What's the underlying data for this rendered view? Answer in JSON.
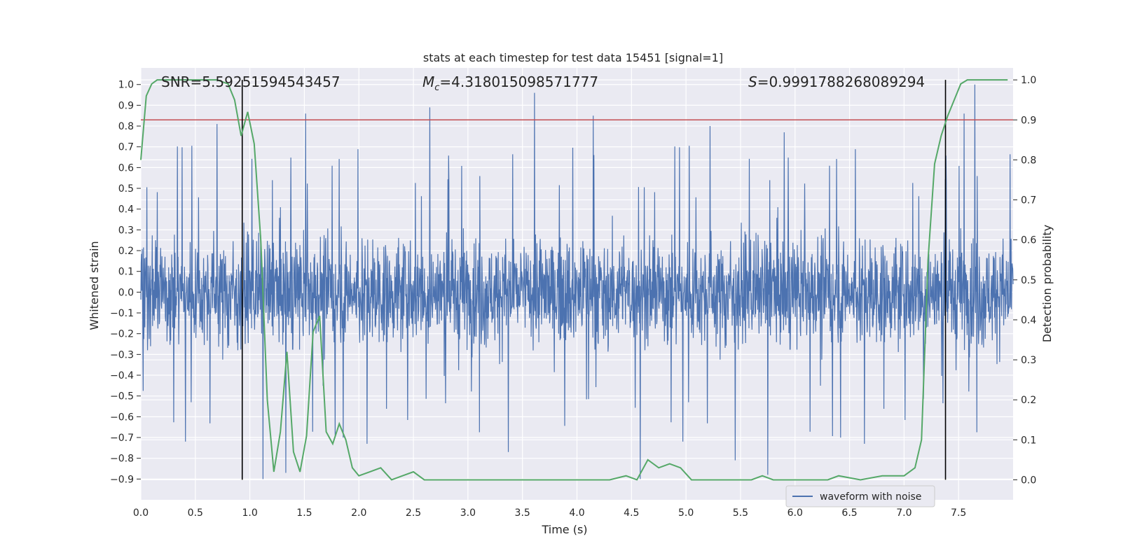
{
  "chart_data": {
    "type": "line",
    "title": "stats at each timestep for test data 15451 [signal=1]",
    "xlabel": "Time (s)",
    "ylabel_left": "Whitened strain",
    "ylabel_right": "Detection probability",
    "xlim": [
      0.0,
      8.0
    ],
    "ylim_left": [
      -1.0,
      1.08
    ],
    "ylim_right": [
      -0.05,
      1.03
    ],
    "x_ticks": [
      "0.0",
      "0.5",
      "1.0",
      "1.5",
      "2.0",
      "2.5",
      "3.0",
      "3.5",
      "4.0",
      "4.5",
      "5.0",
      "5.5",
      "6.0",
      "6.5",
      "7.0",
      "7.5"
    ],
    "y_left_ticks": [
      "1.0",
      "0.9",
      "0.8",
      "0.7",
      "0.6",
      "0.5",
      "0.4",
      "0.3",
      "0.2",
      "0.1",
      "0.0",
      "−0.1",
      "−0.2",
      "−0.3",
      "−0.4",
      "−0.5",
      "−0.6",
      "−0.7",
      "−0.8",
      "−0.9"
    ],
    "y_right_ticks": [
      "1.0",
      "0.9",
      "0.8",
      "0.7",
      "0.6",
      "0.5",
      "0.4",
      "0.3",
      "0.2",
      "0.1",
      "0.0"
    ],
    "grid": true,
    "legend": {
      "entries": [
        "waveform with noise"
      ],
      "placement": "lower-right"
    },
    "annotations": {
      "snr": "SNR=5.59251594543457",
      "mc_symbol": "M",
      "mc_sub": "c",
      "mc_value": "=4.318015098571777",
      "s_symbol": "S",
      "s_value": "=0.9991788268089294"
    },
    "threshold_line": {
      "axis": "right",
      "y": 0.9,
      "color": "#c44e52"
    },
    "vertical_markers": [
      0.93,
      7.38
    ],
    "waveform": {
      "name": "waveform with noise",
      "color": "#4c72b0",
      "duration": 8.0,
      "typical_peak": 0.45,
      "peaks": [
        {
          "t": 0.7,
          "y": 0.81
        },
        {
          "t": 1.51,
          "y": 0.86
        },
        {
          "t": 2.65,
          "y": 0.89
        },
        {
          "t": 3.61,
          "y": 0.96
        },
        {
          "t": 4.15,
          "y": 0.85
        },
        {
          "t": 5.22,
          "y": 0.8
        },
        {
          "t": 5.9,
          "y": 0.77
        },
        {
          "t": 7.55,
          "y": 0.86
        },
        {
          "t": 7.65,
          "y": 1.0
        },
        {
          "t": 1.12,
          "y": -0.9
        },
        {
          "t": 1.33,
          "y": -0.87
        },
        {
          "t": 4.58,
          "y": -0.9
        },
        {
          "t": 5.75,
          "y": -0.88
        },
        {
          "t": 5.45,
          "y": -0.81
        },
        {
          "t": 3.37,
          "y": -0.77
        }
      ]
    },
    "probability": {
      "name": "detection probability",
      "color": "#55a868",
      "t": [
        0.0,
        0.05,
        0.1,
        0.15,
        0.2,
        0.3,
        0.5,
        0.7,
        0.8,
        0.86,
        0.92,
        0.98,
        1.04,
        1.1,
        1.16,
        1.22,
        1.28,
        1.34,
        1.4,
        1.46,
        1.52,
        1.58,
        1.64,
        1.7,
        1.76,
        1.82,
        1.88,
        1.94,
        2.0,
        2.1,
        2.2,
        2.3,
        2.4,
        2.5,
        2.6,
        2.7,
        3.0,
        3.5,
        4.0,
        4.3,
        4.45,
        4.55,
        4.65,
        4.75,
        4.85,
        4.95,
        5.05,
        5.2,
        5.6,
        5.7,
        5.8,
        6.0,
        6.3,
        6.4,
        6.6,
        6.8,
        7.0,
        7.1,
        7.16,
        7.22,
        7.28,
        7.34,
        7.4,
        7.46,
        7.52,
        7.58,
        7.7,
        7.95
      ],
      "p": [
        0.8,
        0.96,
        0.99,
        1.0,
        1.0,
        1.0,
        1.0,
        1.0,
        0.99,
        0.95,
        0.86,
        0.92,
        0.84,
        0.6,
        0.2,
        0.02,
        0.12,
        0.32,
        0.07,
        0.02,
        0.11,
        0.37,
        0.41,
        0.12,
        0.09,
        0.14,
        0.1,
        0.03,
        0.01,
        0.02,
        0.03,
        0.0,
        0.01,
        0.02,
        0.0,
        0.0,
        0.0,
        0.0,
        0.0,
        0.0,
        0.01,
        0.0,
        0.05,
        0.03,
        0.04,
        0.03,
        0.0,
        0.0,
        0.0,
        0.01,
        0.0,
        0.0,
        0.0,
        0.01,
        0.0,
        0.01,
        0.01,
        0.03,
        0.1,
        0.55,
        0.79,
        0.86,
        0.91,
        0.95,
        0.99,
        1.0,
        1.0,
        1.0
      ]
    },
    "colors": {
      "plot_background": "#eaeaf2",
      "grid": "#ffffff",
      "marker": "#000000"
    }
  }
}
